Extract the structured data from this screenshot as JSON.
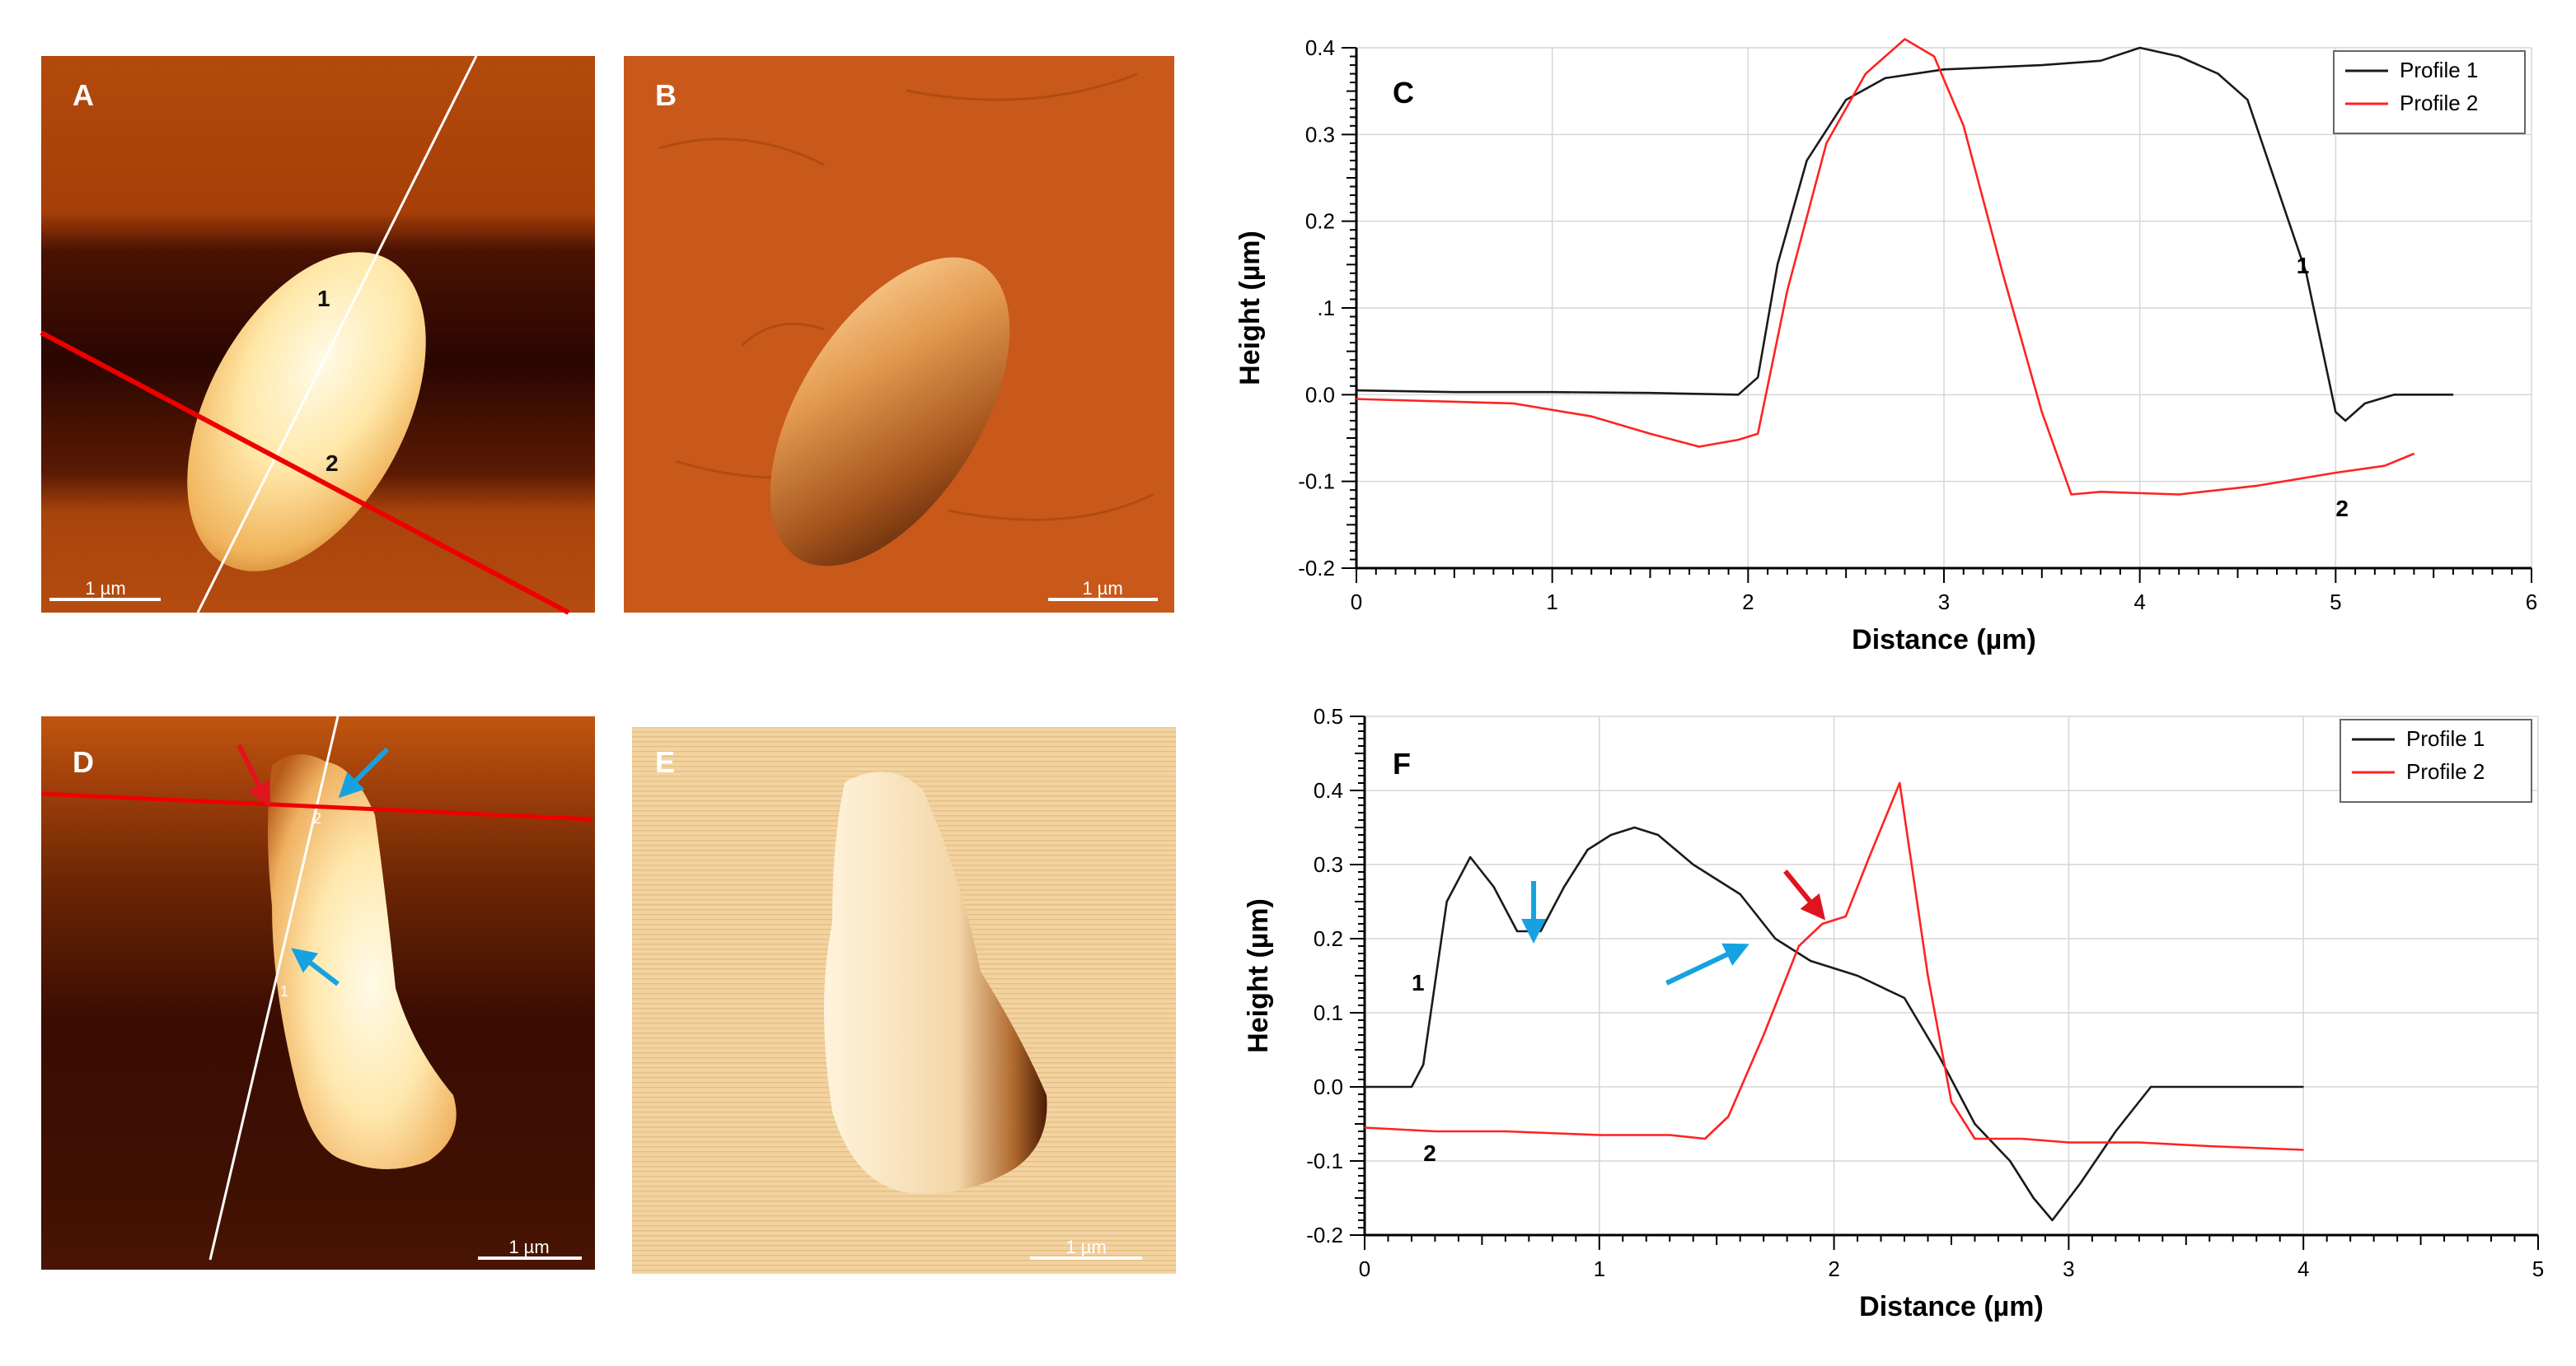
{
  "colors": {
    "profile1": "#1a1a1a",
    "profile2": "#ff2222",
    "arrow_blue": "#16a2e0",
    "arrow_red": "#e0141e",
    "scan_line_red": "#ee0000",
    "scan_line_white": "#ffffff"
  },
  "images": [
    {
      "id": "A",
      "label": "A",
      "scale_bar": "1 µm",
      "profile_marks": [
        "1",
        "2"
      ]
    },
    {
      "id": "B",
      "label": "B",
      "scale_bar": "1 µm"
    },
    {
      "id": "D",
      "label": "D",
      "scale_bar": "1 µm",
      "profile_marks": [
        "2",
        "1"
      ]
    },
    {
      "id": "E",
      "label": "E",
      "scale_bar": "1 µm"
    }
  ],
  "chart_data": [
    {
      "panel": "C",
      "type": "line",
      "xlabel": "Distance (µm)",
      "ylabel": "Height (µm)",
      "xlim": [
        0,
        6
      ],
      "ylim": [
        -0.2,
        0.4
      ],
      "xticks": [
        "0",
        "1",
        "2",
        "3",
        "4",
        "5",
        "6"
      ],
      "yticks": [
        "-0.2",
        "-0.1",
        "0.0",
        ".1",
        "0.2",
        "0.3",
        "0.4"
      ],
      "legend": [
        "Profile 1",
        "Profile 2"
      ],
      "legend_position": "top-right",
      "grid": true,
      "series": [
        {
          "name": "Profile 1",
          "label": "1",
          "x": [
            0,
            0.5,
            1,
            1.5,
            1.95,
            2.05,
            2.15,
            2.3,
            2.5,
            2.7,
            3.0,
            3.5,
            3.8,
            4.0,
            4.2,
            4.4,
            4.55,
            4.7,
            4.85,
            5.0,
            5.05,
            5.15,
            5.3,
            5.6
          ],
          "y": [
            0.005,
            0.003,
            0.003,
            0.002,
            0.0,
            0.02,
            0.15,
            0.27,
            0.34,
            0.365,
            0.375,
            0.38,
            0.385,
            0.4,
            0.39,
            0.37,
            0.34,
            0.24,
            0.14,
            -0.02,
            -0.03,
            -0.01,
            0.0,
            0.0
          ],
          "label_at": [
            4.8,
            0.14
          ]
        },
        {
          "name": "Profile 2",
          "label": "2",
          "x": [
            0,
            0.8,
            1.2,
            1.5,
            1.75,
            1.95,
            2.05,
            2.2,
            2.4,
            2.6,
            2.8,
            2.95,
            3.1,
            3.3,
            3.5,
            3.65,
            3.8,
            4.2,
            4.6,
            5.0,
            5.25,
            5.4
          ],
          "y": [
            -0.005,
            -0.01,
            -0.025,
            -0.045,
            -0.06,
            -0.052,
            -0.045,
            0.12,
            0.29,
            0.37,
            0.41,
            0.39,
            0.31,
            0.14,
            -0.02,
            -0.115,
            -0.112,
            -0.115,
            -0.105,
            -0.09,
            -0.082,
            -0.068
          ],
          "label_at": [
            5.0,
            -0.14
          ]
        }
      ]
    },
    {
      "panel": "F",
      "type": "line",
      "xlabel": "Distance (µm)",
      "ylabel": "Height (µm)",
      "xlim": [
        0,
        5
      ],
      "ylim": [
        -0.2,
        0.5
      ],
      "xticks": [
        "0",
        "1",
        "2",
        "3",
        "4",
        "5"
      ],
      "yticks": [
        "-0.2",
        "-0.1",
        "0.0",
        "0.1",
        "0.2",
        "0.3",
        "0.4",
        "0.5"
      ],
      "legend": [
        "Profile 1",
        "Profile 2"
      ],
      "legend_position": "top-right",
      "grid": true,
      "series": [
        {
          "name": "Profile 1",
          "label": "1",
          "x": [
            0,
            0.2,
            0.25,
            0.35,
            0.45,
            0.55,
            0.65,
            0.75,
            0.85,
            0.95,
            1.05,
            1.15,
            1.25,
            1.4,
            1.6,
            1.75,
            1.9,
            2.1,
            2.3,
            2.45,
            2.6,
            2.75,
            2.85,
            2.93,
            3.05,
            3.2,
            3.35,
            3.6,
            4.0
          ],
          "y": [
            0.0,
            0.0,
            0.03,
            0.25,
            0.31,
            0.27,
            0.21,
            0.21,
            0.27,
            0.32,
            0.34,
            0.35,
            0.34,
            0.3,
            0.26,
            0.2,
            0.17,
            0.15,
            0.12,
            0.04,
            -0.05,
            -0.1,
            -0.15,
            -0.18,
            -0.13,
            -0.06,
            0.0,
            0.0,
            0.0
          ],
          "label_at": [
            0.2,
            0.13
          ]
        },
        {
          "name": "Profile 2",
          "label": "2",
          "x": [
            0,
            0.3,
            0.6,
            1.0,
            1.3,
            1.45,
            1.55,
            1.7,
            1.85,
            1.95,
            2.05,
            2.15,
            2.28,
            2.4,
            2.5,
            2.6,
            2.8,
            3.0,
            3.3,
            3.6,
            4.0
          ],
          "y": [
            -0.055,
            -0.06,
            -0.06,
            -0.065,
            -0.065,
            -0.07,
            -0.04,
            0.07,
            0.19,
            0.22,
            0.23,
            0.31,
            0.41,
            0.15,
            -0.02,
            -0.07,
            -0.07,
            -0.075,
            -0.075,
            -0.08,
            -0.085
          ],
          "label_at": [
            0.25,
            -0.1
          ]
        }
      ],
      "arrows": [
        {
          "color": "blue",
          "x": 0.72,
          "y": 0.2
        },
        {
          "color": "red",
          "x": 1.95,
          "y": 0.23
        },
        {
          "color": "blue",
          "x": 1.62,
          "y": 0.19
        }
      ]
    }
  ]
}
